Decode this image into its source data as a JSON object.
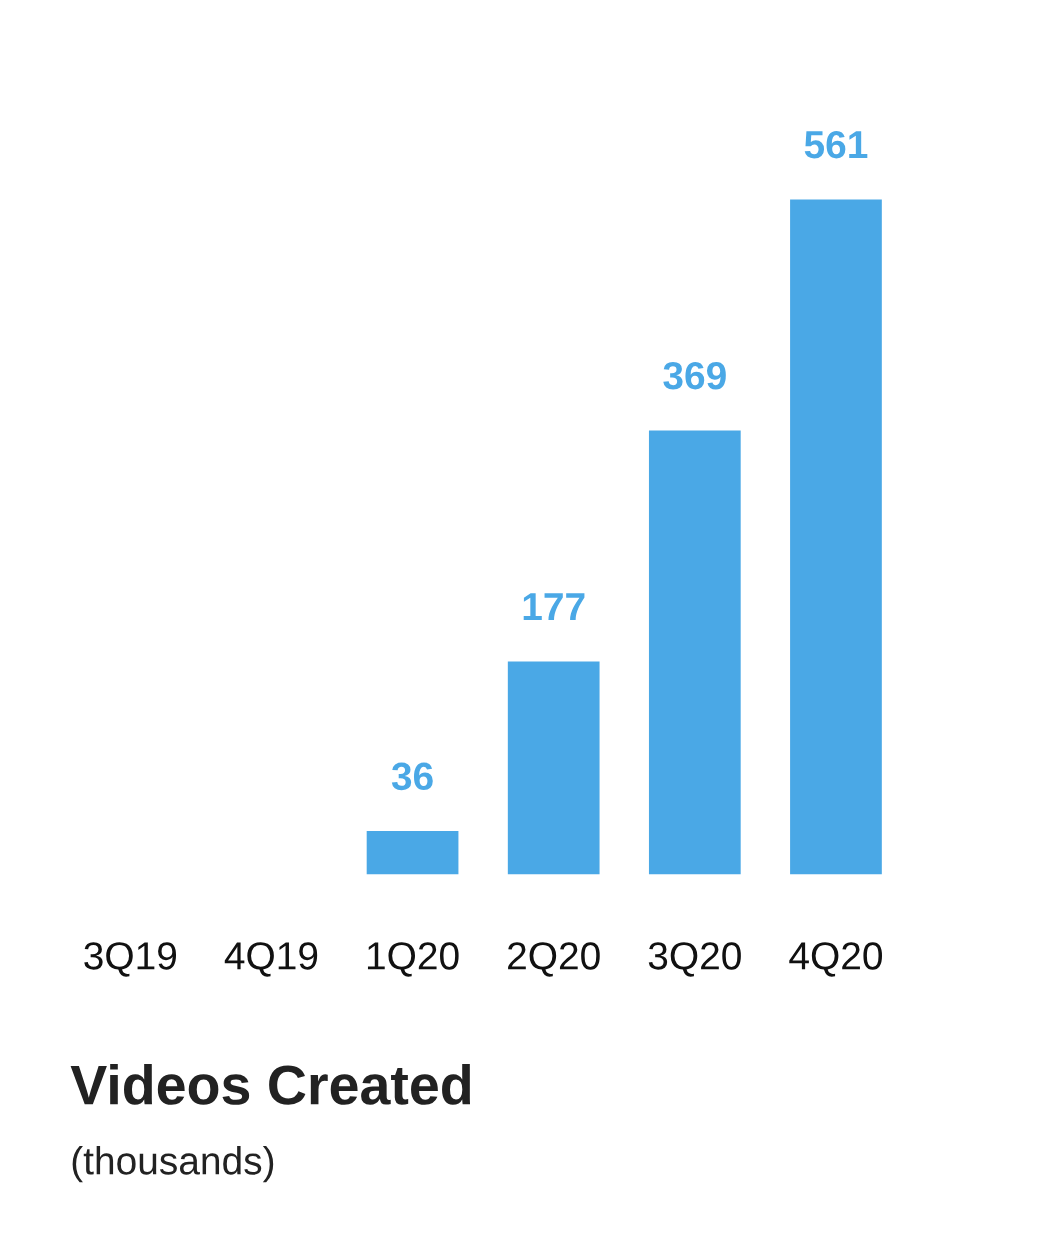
{
  "chart_data": {
    "type": "bar",
    "title": "Videos Created",
    "subtitle": "(thousands)",
    "categories": [
      "3Q19",
      "4Q19",
      "1Q20",
      "2Q20",
      "3Q20",
      "4Q20"
    ],
    "values": [
      null,
      null,
      36,
      177,
      369,
      561
    ],
    "color": "#4aa8e6",
    "data_labels": true,
    "grid": false,
    "legend": false
  }
}
